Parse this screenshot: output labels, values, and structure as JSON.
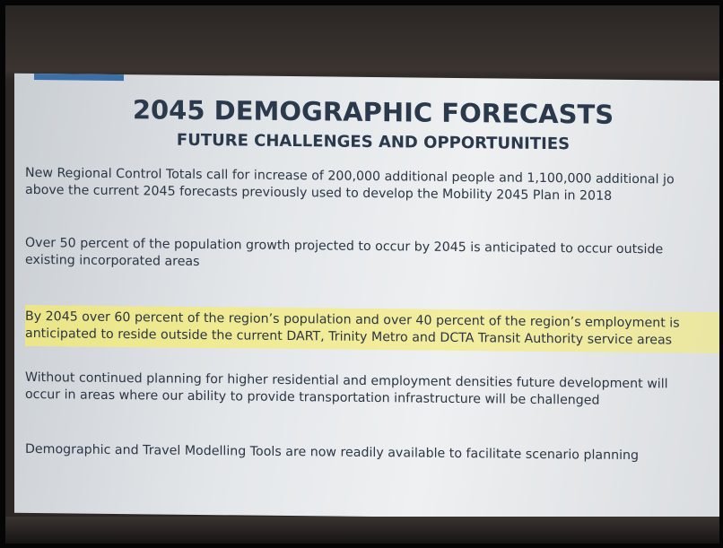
{
  "header": {
    "title": "2045 DEMOGRAPHIC FORECASTS",
    "subtitle": "FUTURE CHALLENGES AND OPPORTUNITIES"
  },
  "paragraphs": [
    {
      "lines": [
        "New Regional Control Totals call for increase of 200,000 additional people and 1,100,000 additional jo",
        "above the current 2045 forecasts previously used to develop the Mobility 2045 Plan in 2018"
      ]
    },
    {
      "lines": [
        "Over 50 percent of the population growth projected to occur by 2045 is anticipated to occur outside",
        "existing incorporated areas"
      ]
    },
    {
      "lines": [
        "By 2045 over 60 percent of the region’s population and over 40 percent of the region’s employment is",
        "anticipated to reside outside the current DART, Trinity Metro and DCTA Transit Authority service areas"
      ]
    },
    {
      "lines": [
        "Without continued planning for higher residential and employment densities future development will",
        "occur in areas where our ability to provide transportation infrastructure will be challenged"
      ]
    },
    {
      "lines": [
        "Demographic and Travel Modelling Tools are now readily available to facilitate scenario planning"
      ]
    }
  ]
}
